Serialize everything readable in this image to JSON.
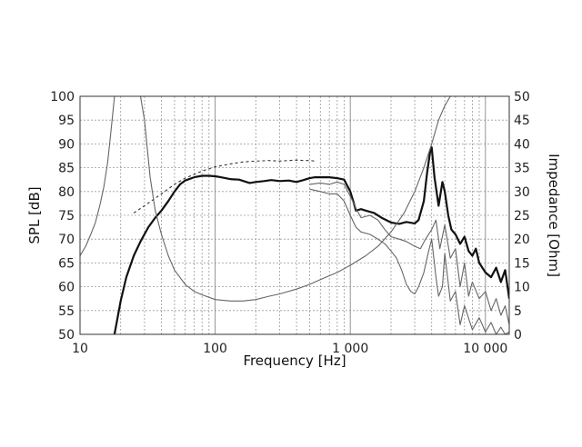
{
  "chart_data": {
    "type": "line",
    "xlabel": "Frequency [Hz]",
    "ylabel": "SPL [dB]",
    "y2label": "Impedance [Ohm]",
    "xscale": "log",
    "xlim": [
      10,
      15000
    ],
    "ylim": [
      50,
      100
    ],
    "y2lim": [
      0,
      50
    ],
    "grid": true,
    "x_ticks": [
      {
        "value": 10,
        "label": "10"
      },
      {
        "value": 100,
        "label": "100"
      },
      {
        "value": 1000,
        "label": "1 000"
      },
      {
        "value": 10000,
        "label": "10 000"
      }
    ],
    "y_ticks": [
      {
        "value": 50,
        "label": "50"
      },
      {
        "value": 55,
        "label": "55"
      },
      {
        "value": 60,
        "label": "60"
      },
      {
        "value": 65,
        "label": "65"
      },
      {
        "value": 70,
        "label": "70"
      },
      {
        "value": 75,
        "label": "75"
      },
      {
        "value": 80,
        "label": "80"
      },
      {
        "value": 85,
        "label": "85"
      },
      {
        "value": 90,
        "label": "90"
      },
      {
        "value": 95,
        "label": "95"
      },
      {
        "value": 100,
        "label": "100"
      }
    ],
    "y2_ticks": [
      {
        "value": 0,
        "label": "0"
      },
      {
        "value": 5,
        "label": "5"
      },
      {
        "value": 10,
        "label": "10"
      },
      {
        "value": 15,
        "label": "15"
      },
      {
        "value": 20,
        "label": "20"
      },
      {
        "value": 25,
        "label": "25"
      },
      {
        "value": 30,
        "label": "30"
      },
      {
        "value": 35,
        "label": "35"
      },
      {
        "value": 40,
        "label": "40"
      },
      {
        "value": 45,
        "label": "45"
      },
      {
        "value": 50,
        "label": "50"
      }
    ],
    "series": [
      {
        "axis": "left",
        "style": "bold",
        "x": [
          18,
          20,
          22,
          25,
          28,
          32,
          36,
          40,
          45,
          50,
          55,
          60,
          70,
          80,
          90,
          100,
          110,
          130,
          150,
          180,
          200,
          230,
          260,
          300,
          350,
          400,
          450,
          500,
          550,
          600,
          700,
          800,
          900,
          1000,
          1050,
          1100,
          1200,
          1300,
          1500,
          1700,
          2000,
          2300,
          2600,
          3000,
          3200,
          3500,
          3700,
          3900,
          4000,
          4200,
          4500,
          4800,
          5000,
          5300,
          5600,
          6000,
          6500,
          7000,
          7500,
          8000,
          8500,
          9000,
          10000,
          11000,
          12000,
          13000,
          14000,
          15000
        ],
        "y": [
          50,
          57,
          62,
          66.5,
          69.5,
          72.5,
          74.5,
          76,
          78,
          80,
          81.5,
          82.3,
          83,
          83.3,
          83.3,
          83.2,
          83,
          82.6,
          82.5,
          81.8,
          82,
          82.2,
          82.4,
          82.2,
          82.3,
          82,
          82.4,
          82.8,
          83,
          83,
          83,
          82.8,
          82.5,
          80,
          78,
          76,
          76.3,
          76,
          75.5,
          74.5,
          73.5,
          73.2,
          73.6,
          73.3,
          74,
          78,
          84,
          88.5,
          89.3,
          83,
          77,
          82,
          80,
          75,
          72,
          71,
          69,
          70.5,
          67.5,
          66.5,
          68,
          65,
          63,
          62,
          64,
          61,
          63.5,
          57.5
        ]
      },
      {
        "axis": "left",
        "style": "thin",
        "x": [
          500,
          600,
          700,
          800,
          900,
          1000,
          1100,
          1200,
          1400,
          1600,
          1800,
          2000,
          2300,
          2600,
          3000,
          3300,
          3600,
          4000,
          4300,
          4600,
          5000,
          5500,
          6000,
          6500,
          7000,
          7500,
          8000,
          9000,
          10000,
          11000,
          12000,
          13000,
          14000,
          15000
        ],
        "y": [
          81.5,
          81.8,
          81.5,
          82,
          81.5,
          79,
          76.5,
          74.5,
          75,
          74,
          72,
          70.5,
          70,
          69.5,
          68.5,
          68,
          70,
          72,
          74,
          68,
          73,
          66,
          68,
          60,
          65,
          58,
          61,
          57.5,
          59,
          55,
          57.5,
          54,
          56,
          52
        ]
      },
      {
        "axis": "left",
        "style": "thin",
        "x": [
          500,
          600,
          700,
          800,
          900,
          1000,
          1100,
          1200,
          1400,
          1600,
          1800,
          2000,
          2200,
          2400,
          2600,
          2800,
          3000,
          3200,
          3500,
          3800,
          4000,
          4300,
          4500,
          4800,
          5000,
          5500,
          6000,
          6500,
          7000,
          8000,
          9000,
          10000,
          11000,
          12000,
          13000,
          14000,
          15000
        ],
        "y": [
          80.5,
          80,
          79.5,
          79.5,
          78,
          75,
          72.5,
          71.5,
          71,
          70,
          69,
          67.5,
          66,
          63.5,
          60.5,
          59,
          58.5,
          60,
          63,
          67.5,
          70,
          62,
          58,
          60,
          67,
          57,
          59,
          52,
          56,
          51,
          53.5,
          50.5,
          52.5,
          50,
          51.5,
          50,
          50.5
        ]
      },
      {
        "axis": "left",
        "style": "dashed",
        "x": [
          25,
          30,
          40,
          50,
          60,
          80,
          100,
          130,
          160,
          200,
          250,
          300,
          350,
          400,
          450,
          500,
          550
        ],
        "y": [
          75.5,
          77,
          79.5,
          81.5,
          82.8,
          84.3,
          85.2,
          85.8,
          86.2,
          86.4,
          86.5,
          86.4,
          86.5,
          86.6,
          86.5,
          86.5,
          86.4
        ]
      },
      {
        "axis": "right",
        "style": "thin",
        "x": [
          10,
          11,
          12,
          13,
          14,
          15,
          16,
          17,
          18,
          20,
          22,
          25,
          28,
          30,
          33,
          36,
          40,
          45,
          50,
          60,
          70,
          80,
          100,
          130,
          160,
          200,
          250,
          300,
          400,
          500,
          600,
          700,
          800,
          1000,
          1300,
          1600,
          2000,
          2500,
          3000,
          3500,
          4000,
          4500,
          5000,
          5500,
          6000
        ],
        "y": [
          16.5,
          18.5,
          21,
          23.5,
          27,
          31,
          36,
          43,
          50,
          50,
          50,
          50,
          50,
          45,
          33,
          26,
          21,
          16.5,
          13.5,
          10.5,
          9,
          8.3,
          7.3,
          7,
          7,
          7.3,
          8,
          8.5,
          9.5,
          10.5,
          11.5,
          12.3,
          13,
          14.5,
          16.5,
          18.5,
          21.5,
          25.5,
          30,
          35,
          40,
          45,
          48,
          50,
          50
        ]
      }
    ]
  }
}
